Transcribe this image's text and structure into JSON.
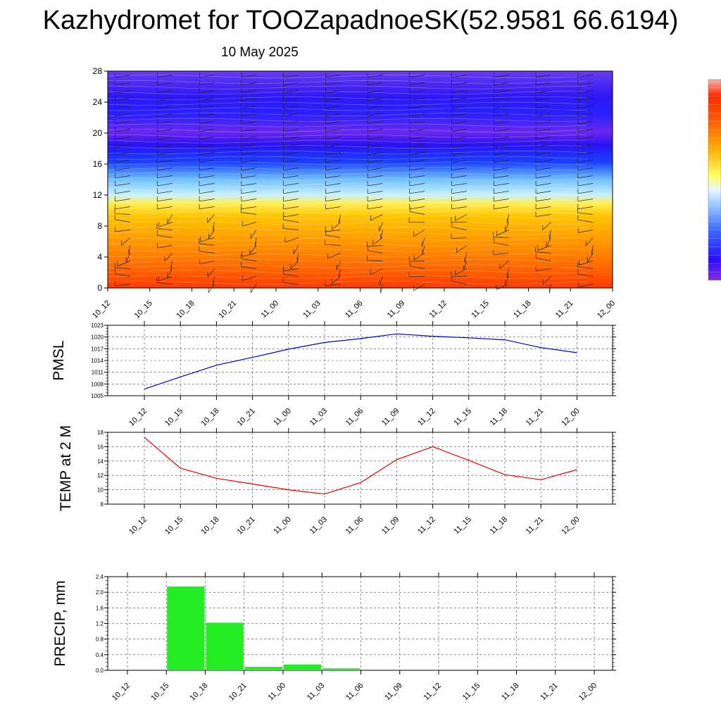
{
  "header": {
    "title": "Kazhydromet for TOOZapadnoeSK(52.9581 66.6194)",
    "date": "10 May 2025"
  },
  "chart_data": [
    {
      "type": "heatmap",
      "title": "",
      "x_ticks": [
        "10_12",
        "10_15",
        "10_18",
        "10_21",
        "11_00",
        "11_03",
        "11_06",
        "11_09",
        "11_12",
        "11_15",
        "11_18",
        "11_21",
        "12_00"
      ],
      "y_ticks": [
        "0",
        "4",
        "8",
        "12",
        "16",
        "20",
        "24",
        "28"
      ],
      "ylim": [
        0,
        28
      ],
      "colorbar": [
        "#8a2be2",
        "#2a0bff",
        "#3b5bff",
        "#7aaeff",
        "#cfe8ff",
        "#ffff66",
        "#ffc000",
        "#ff7a00",
        "#ff2000",
        "#ff9090"
      ],
      "overlay": "wind barbs"
    },
    {
      "type": "line",
      "ylabel": "PMSL",
      "x_ticks": [
        "10_12",
        "10_15",
        "10_18",
        "10_21",
        "11_00",
        "11_03",
        "11_06",
        "11_09",
        "11_12",
        "11_15",
        "11_18",
        "11_21",
        "12_00"
      ],
      "y_ticks": [
        "1005",
        "1008",
        "1011",
        "1014",
        "1017",
        "1020",
        "1023"
      ],
      "ylim": [
        1005,
        1023
      ],
      "color": "#0000cc",
      "values": [
        1006.7,
        1009.8,
        1012.8,
        1014.8,
        1016.9,
        1018.6,
        1019.6,
        1020.8,
        1020.2,
        1019.8,
        1019.3,
        1017.3,
        1016.0
      ],
      "grid": true
    },
    {
      "type": "line",
      "ylabel": "TEMP at 2 M",
      "x_ticks": [
        "10_12",
        "10_15",
        "10_18",
        "10_21",
        "11_00",
        "11_03",
        "11_06",
        "11_09",
        "11_12",
        "11_15",
        "11_18",
        "11_21",
        "12_00"
      ],
      "y_ticks": [
        "8",
        "10",
        "12",
        "14",
        "16",
        "18"
      ],
      "ylim": [
        8,
        18
      ],
      "color": "#ee0000",
      "values": [
        17.3,
        13.0,
        11.6,
        10.8,
        10.0,
        9.4,
        11.0,
        14.2,
        16.0,
        14.1,
        12.1,
        11.4,
        12.8
      ],
      "grid": true
    },
    {
      "type": "bar",
      "ylabel": "PRECIP, mm",
      "categories": [
        "10_12",
        "10_15",
        "10_18",
        "10_21",
        "11_00",
        "11_03",
        "11_06",
        "11_09",
        "11_12",
        "11_15",
        "11_18",
        "11_21",
        "12_00"
      ],
      "y_ticks": [
        "0.0",
        "0.4",
        "0.8",
        "1.2",
        "1.6",
        "2.0",
        "2.4"
      ],
      "ylim": [
        0,
        2.4
      ],
      "color": "#22ee22",
      "values": [
        0,
        2.15,
        1.22,
        0.09,
        0.15,
        0.05,
        0,
        0,
        0,
        0,
        0,
        0,
        0
      ],
      "grid": true
    }
  ]
}
